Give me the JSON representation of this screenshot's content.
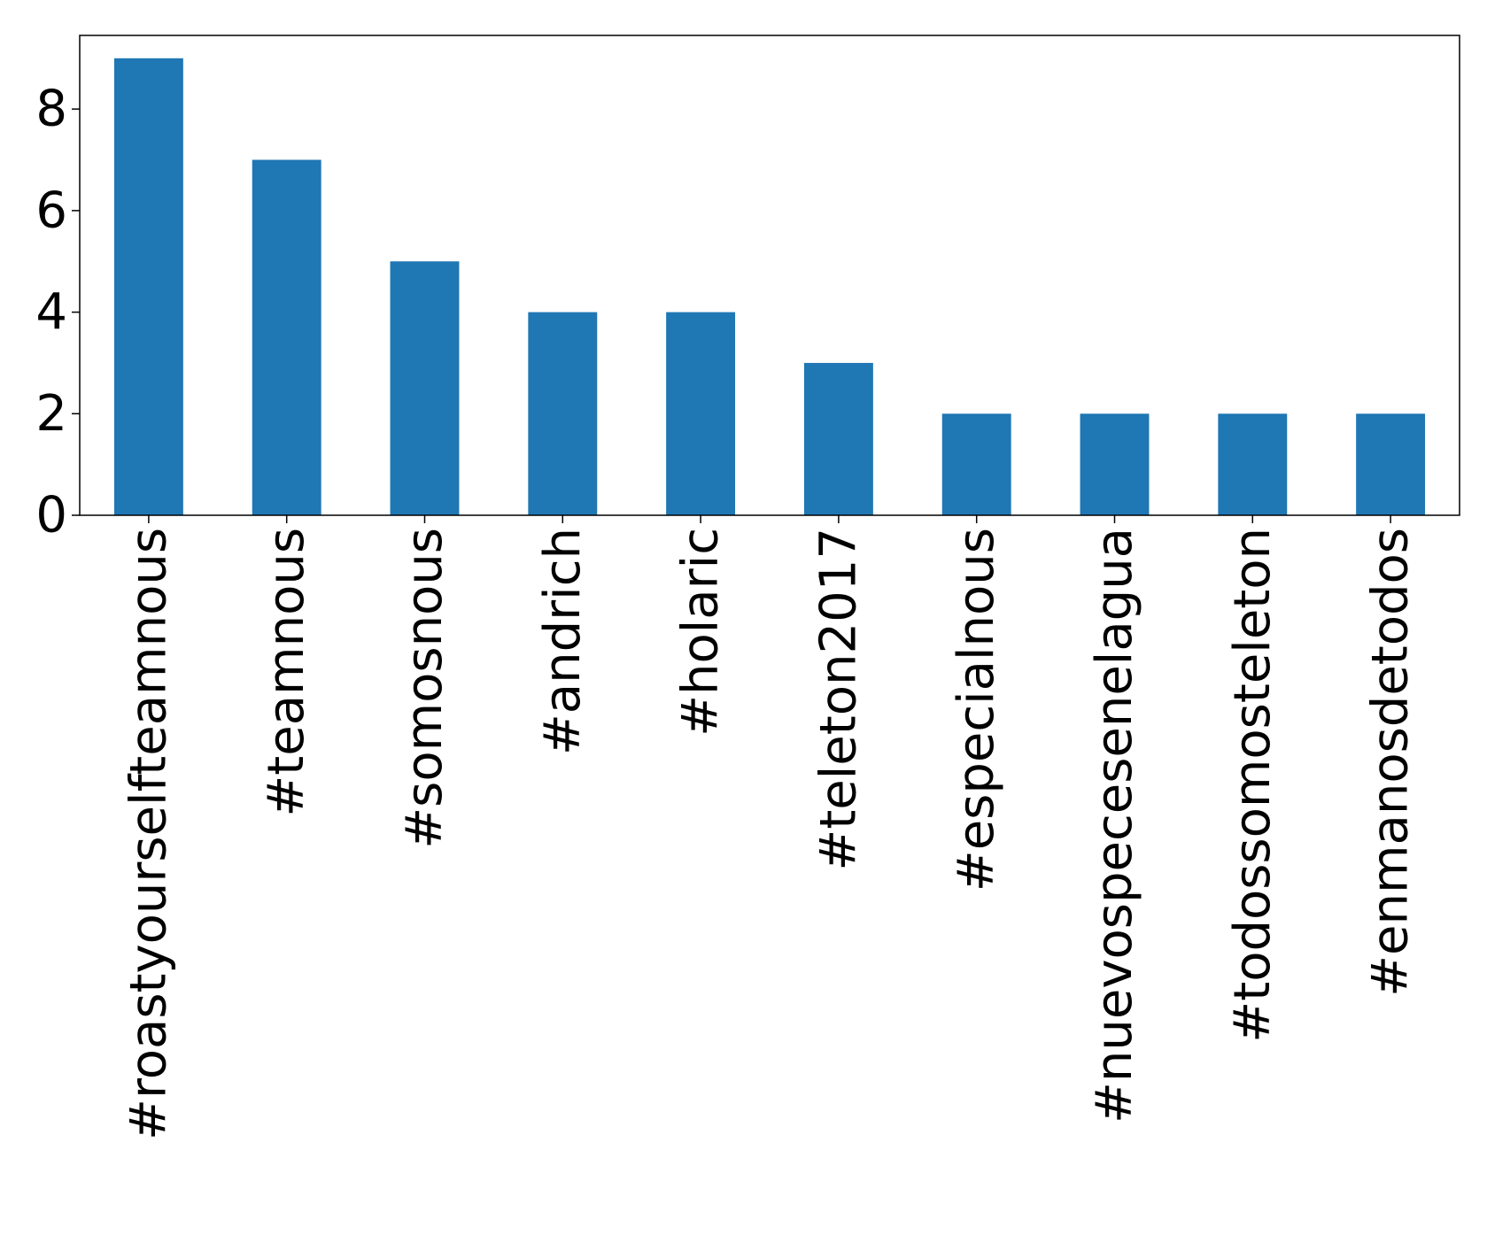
{
  "chart_data": {
    "type": "bar",
    "title": "",
    "xlabel": "",
    "ylabel": "",
    "categories": [
      "#roastyourselfteamnous",
      "#teamnous",
      "#somosnous",
      "#andrich",
      "#holaric",
      "#teleton2017",
      "#especialnous",
      "#nuevospecesenelagua",
      "#todossomosteleton",
      "#enmanosdetodos"
    ],
    "values": [
      9,
      7,
      5,
      4,
      4,
      3,
      2,
      2,
      2,
      2
    ],
    "ylim": [
      0,
      9.45
    ],
    "yticks": [
      0,
      2,
      4,
      6,
      8
    ],
    "bar_color": "#1f77b4",
    "grid": false,
    "legend": "none"
  }
}
